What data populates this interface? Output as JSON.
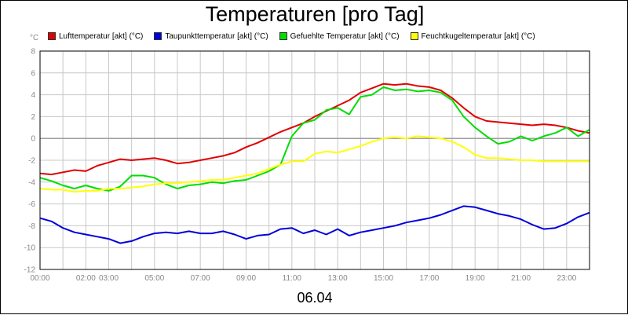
{
  "chart_data": {
    "type": "line",
    "title": "Temperaturen [pro Tag]",
    "date_label": "06.04",
    "y_unit": "°C",
    "ylim": [
      -12,
      8
    ],
    "yticks": [
      8,
      6,
      4,
      2,
      0,
      -2,
      -4,
      -6,
      -8,
      -10,
      -12
    ],
    "xlim": [
      0,
      24
    ],
    "xticks": [
      {
        "h": 0,
        "label": "00:00"
      },
      {
        "h": 2,
        "label": "02:00"
      },
      {
        "h": 3,
        "label": "03:00"
      },
      {
        "h": 5,
        "label": "05:00"
      },
      {
        "h": 7,
        "label": "07:00"
      },
      {
        "h": 9,
        "label": "09:00"
      },
      {
        "h": 11,
        "label": "11:00"
      },
      {
        "h": 13,
        "label": "13:00"
      },
      {
        "h": 15,
        "label": "15:00"
      },
      {
        "h": 17,
        "label": "17:00"
      },
      {
        "h": 19,
        "label": "19:00"
      },
      {
        "h": 21,
        "label": "21:00"
      },
      {
        "h": 23,
        "label": "23:00"
      }
    ],
    "grid": true,
    "legend_position": "top",
    "series": [
      {
        "name": "Lufttemperatur [akt] (°C)",
        "color": "#e00000",
        "points": [
          [
            0,
            -3.2
          ],
          [
            0.5,
            -3.3
          ],
          [
            1,
            -3.1
          ],
          [
            1.5,
            -2.9
          ],
          [
            2,
            -3.0
          ],
          [
            2.5,
            -2.5
          ],
          [
            3,
            -2.2
          ],
          [
            3.5,
            -1.9
          ],
          [
            4,
            -2.0
          ],
          [
            4.5,
            -1.9
          ],
          [
            5,
            -1.8
          ],
          [
            5.5,
            -2.0
          ],
          [
            6,
            -2.3
          ],
          [
            6.5,
            -2.2
          ],
          [
            7,
            -2.0
          ],
          [
            7.5,
            -1.8
          ],
          [
            8,
            -1.6
          ],
          [
            8.5,
            -1.3
          ],
          [
            9,
            -0.8
          ],
          [
            9.5,
            -0.4
          ],
          [
            10,
            0.1
          ],
          [
            10.5,
            0.6
          ],
          [
            11,
            1.0
          ],
          [
            11.5,
            1.4
          ],
          [
            12,
            2.0
          ],
          [
            12.5,
            2.5
          ],
          [
            13,
            3.0
          ],
          [
            13.5,
            3.5
          ],
          [
            14,
            4.2
          ],
          [
            14.5,
            4.6
          ],
          [
            15,
            5.0
          ],
          [
            15.5,
            4.9
          ],
          [
            16,
            5.0
          ],
          [
            16.5,
            4.8
          ],
          [
            17,
            4.7
          ],
          [
            17.5,
            4.4
          ],
          [
            18,
            3.7
          ],
          [
            18.5,
            2.8
          ],
          [
            19,
            2.0
          ],
          [
            19.5,
            1.6
          ],
          [
            20,
            1.5
          ],
          [
            20.5,
            1.4
          ],
          [
            21,
            1.3
          ],
          [
            21.5,
            1.2
          ],
          [
            22,
            1.3
          ],
          [
            22.5,
            1.2
          ],
          [
            23,
            1.0
          ],
          [
            23.5,
            0.7
          ],
          [
            24,
            0.5
          ]
        ]
      },
      {
        "name": "Taupunkttemperatur [akt] (°C)",
        "color": "#0000dd",
        "points": [
          [
            0,
            -7.3
          ],
          [
            0.5,
            -7.6
          ],
          [
            1,
            -8.2
          ],
          [
            1.5,
            -8.6
          ],
          [
            2,
            -8.8
          ],
          [
            2.5,
            -9.0
          ],
          [
            3,
            -9.2
          ],
          [
            3.5,
            -9.6
          ],
          [
            4,
            -9.4
          ],
          [
            4.5,
            -9.0
          ],
          [
            5,
            -8.7
          ],
          [
            5.5,
            -8.6
          ],
          [
            6,
            -8.7
          ],
          [
            6.5,
            -8.5
          ],
          [
            7,
            -8.7
          ],
          [
            7.5,
            -8.7
          ],
          [
            8,
            -8.5
          ],
          [
            8.5,
            -8.8
          ],
          [
            9,
            -9.2
          ],
          [
            9.5,
            -8.9
          ],
          [
            10,
            -8.8
          ],
          [
            10.5,
            -8.3
          ],
          [
            11,
            -8.2
          ],
          [
            11.5,
            -8.7
          ],
          [
            12,
            -8.4
          ],
          [
            12.5,
            -8.8
          ],
          [
            13,
            -8.3
          ],
          [
            13.5,
            -8.9
          ],
          [
            14,
            -8.6
          ],
          [
            14.5,
            -8.4
          ],
          [
            15,
            -8.2
          ],
          [
            15.5,
            -8.0
          ],
          [
            16,
            -7.7
          ],
          [
            16.5,
            -7.5
          ],
          [
            17,
            -7.3
          ],
          [
            17.5,
            -7.0
          ],
          [
            18,
            -6.6
          ],
          [
            18.5,
            -6.2
          ],
          [
            19,
            -6.3
          ],
          [
            19.5,
            -6.6
          ],
          [
            20,
            -6.9
          ],
          [
            20.5,
            -7.1
          ],
          [
            21,
            -7.4
          ],
          [
            21.5,
            -7.9
          ],
          [
            22,
            -8.3
          ],
          [
            22.5,
            -8.2
          ],
          [
            23,
            -7.8
          ],
          [
            23.5,
            -7.2
          ],
          [
            24,
            -6.8
          ]
        ]
      },
      {
        "name": "Gefuehlte Temperatur [akt] (°C)",
        "color": "#00dd00",
        "points": [
          [
            0,
            -3.6
          ],
          [
            0.5,
            -3.9
          ],
          [
            1,
            -4.3
          ],
          [
            1.5,
            -4.6
          ],
          [
            2,
            -4.3
          ],
          [
            2.5,
            -4.6
          ],
          [
            3,
            -4.8
          ],
          [
            3.5,
            -4.4
          ],
          [
            4,
            -3.4
          ],
          [
            4.5,
            -3.4
          ],
          [
            5,
            -3.6
          ],
          [
            5.5,
            -4.2
          ],
          [
            6,
            -4.6
          ],
          [
            6.5,
            -4.3
          ],
          [
            7,
            -4.2
          ],
          [
            7.5,
            -4.0
          ],
          [
            8,
            -4.1
          ],
          [
            8.5,
            -3.9
          ],
          [
            9,
            -3.8
          ],
          [
            9.5,
            -3.4
          ],
          [
            10,
            -3.0
          ],
          [
            10.5,
            -2.4
          ],
          [
            11,
            0.2
          ],
          [
            11.5,
            1.4
          ],
          [
            12,
            1.7
          ],
          [
            12.5,
            2.6
          ],
          [
            13,
            2.8
          ],
          [
            13.5,
            2.2
          ],
          [
            14,
            3.8
          ],
          [
            14.5,
            4.0
          ],
          [
            15,
            4.7
          ],
          [
            15.5,
            4.4
          ],
          [
            16,
            4.5
          ],
          [
            16.5,
            4.3
          ],
          [
            17,
            4.4
          ],
          [
            17.5,
            4.2
          ],
          [
            18,
            3.5
          ],
          [
            18.5,
            2.0
          ],
          [
            19,
            1.0
          ],
          [
            19.5,
            0.2
          ],
          [
            20,
            -0.5
          ],
          [
            20.5,
            -0.3
          ],
          [
            21,
            0.2
          ],
          [
            21.5,
            -0.2
          ],
          [
            22,
            0.2
          ],
          [
            22.5,
            0.5
          ],
          [
            23,
            1.0
          ],
          [
            23.5,
            0.2
          ],
          [
            24,
            0.8
          ]
        ]
      },
      {
        "name": "Feuchtkugeltemperatur [akt] (°C)",
        "color": "#ffff00",
        "points": [
          [
            0,
            -4.6
          ],
          [
            0.5,
            -4.7
          ],
          [
            1,
            -4.7
          ],
          [
            1.5,
            -4.9
          ],
          [
            2,
            -4.8
          ],
          [
            2.5,
            -4.8
          ],
          [
            3,
            -4.6
          ],
          [
            3.5,
            -4.6
          ],
          [
            4,
            -4.5
          ],
          [
            4.5,
            -4.4
          ],
          [
            5,
            -4.2
          ],
          [
            5.5,
            -4.1
          ],
          [
            6,
            -4.1
          ],
          [
            6.5,
            -4.0
          ],
          [
            7,
            -3.9
          ],
          [
            7.5,
            -3.8
          ],
          [
            8,
            -3.8
          ],
          [
            8.5,
            -3.6
          ],
          [
            9,
            -3.4
          ],
          [
            9.5,
            -3.2
          ],
          [
            10,
            -2.8
          ],
          [
            10.5,
            -2.4
          ],
          [
            11,
            -2.1
          ],
          [
            11.5,
            -2.1
          ],
          [
            12,
            -1.4
          ],
          [
            12.5,
            -1.2
          ],
          [
            13,
            -1.3
          ],
          [
            13.5,
            -1.0
          ],
          [
            14,
            -0.7
          ],
          [
            14.5,
            -0.3
          ],
          [
            15,
            0.0
          ],
          [
            15.5,
            0.1
          ],
          [
            16,
            0.0
          ],
          [
            16.5,
            0.2
          ],
          [
            17,
            0.1
          ],
          [
            17.5,
            0.0
          ],
          [
            18,
            -0.3
          ],
          [
            18.5,
            -0.8
          ],
          [
            19,
            -1.5
          ],
          [
            19.5,
            -1.8
          ],
          [
            20,
            -1.8
          ],
          [
            20.5,
            -1.9
          ],
          [
            21,
            -2.0
          ],
          [
            21.5,
            -2.0
          ],
          [
            22,
            -2.1
          ],
          [
            22.5,
            -2.1
          ],
          [
            23,
            -2.1
          ],
          [
            23.5,
            -2.1
          ],
          [
            24,
            -2.1
          ]
        ]
      }
    ]
  }
}
